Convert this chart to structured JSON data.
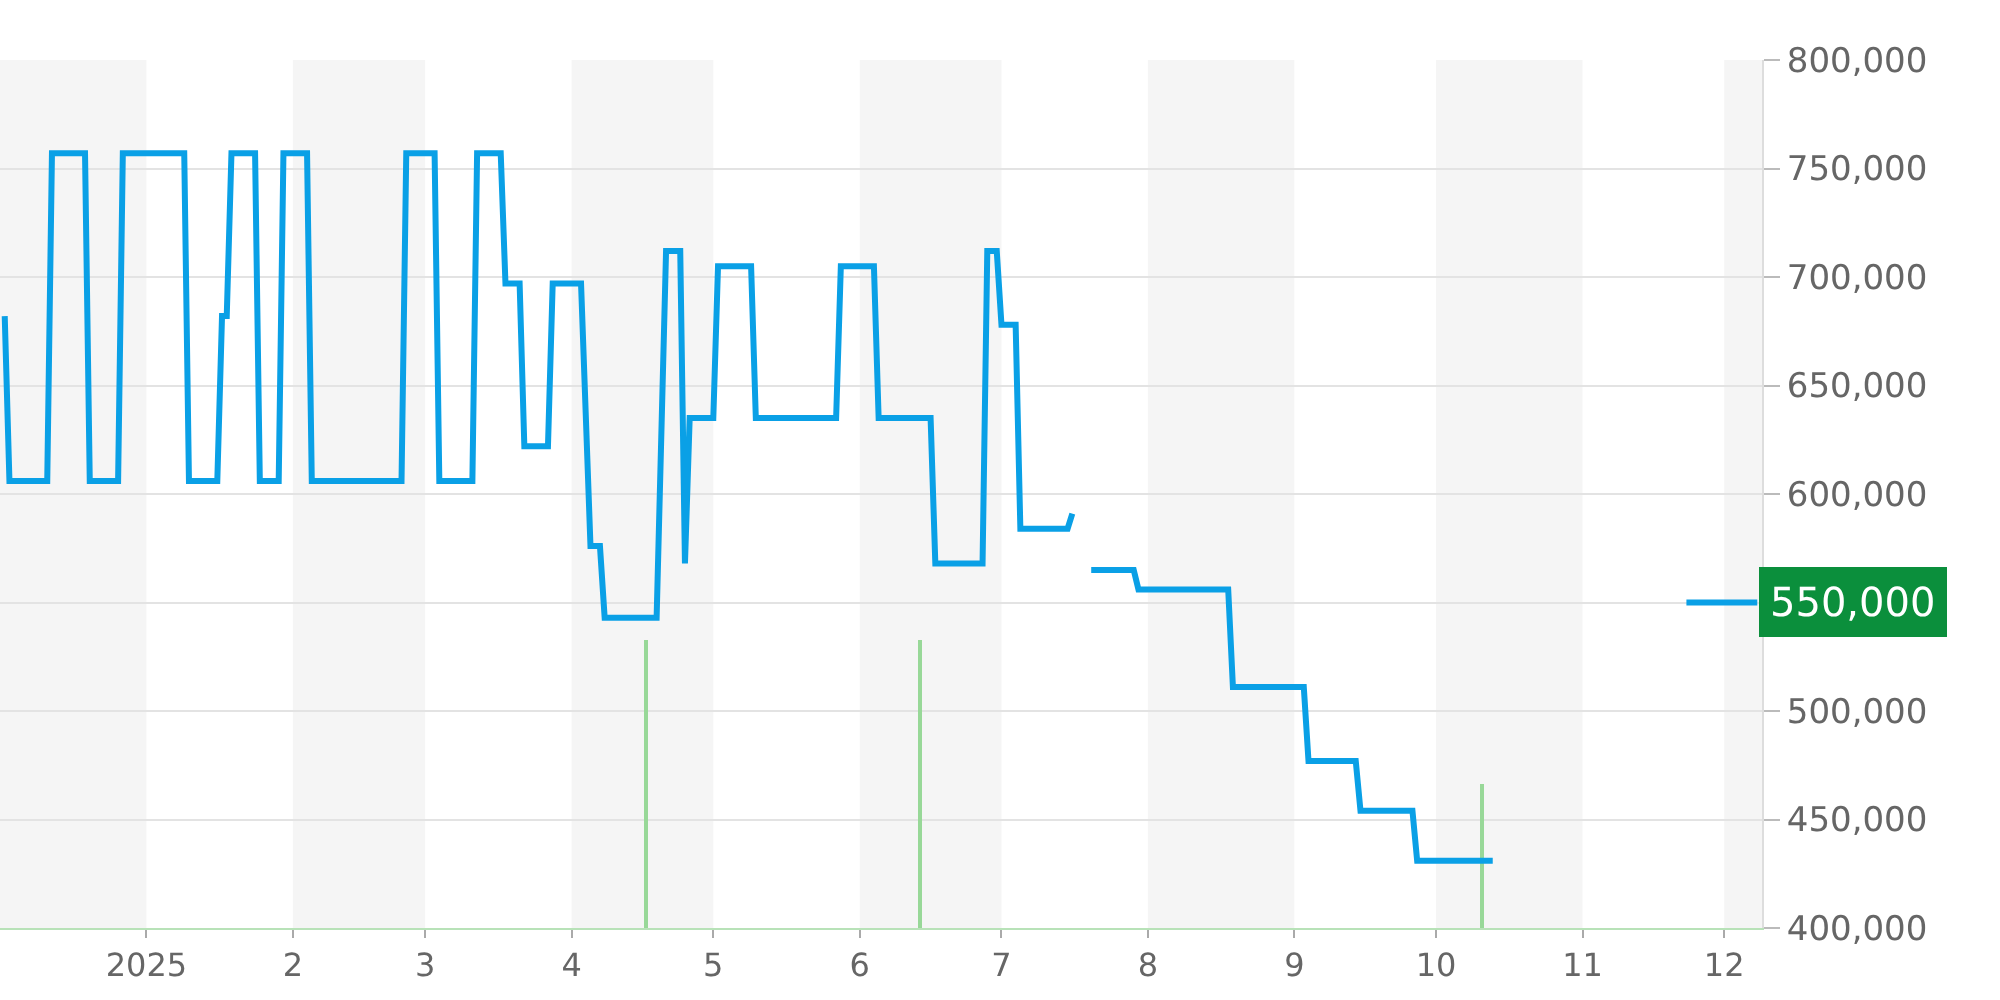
{
  "chart_data": {
    "type": "line",
    "series": [
      {
        "color": "#0aa0e6",
        "line_style": "solid",
        "x": [
          "2024-12-02",
          "2024-12-03",
          "2024-12-11",
          "2024-12-12",
          "2024-12-19",
          "2024-12-20",
          "2024-12-26",
          "2024-12-27",
          "2025-01-09",
          "2025-01-10",
          "2025-01-16",
          "2025-01-17",
          "2025-01-18",
          "2025-01-19",
          "2025-01-24",
          "2025-01-25",
          "2025-01-29",
          "2025-01-30",
          "2025-02-04",
          "2025-02-05",
          "2025-02-24",
          "2025-02-25",
          "2025-03-03",
          "2025-03-04",
          "2025-03-11",
          "2025-03-12",
          "2025-03-17",
          "2025-03-18",
          "2025-03-21",
          "2025-03-22",
          "2025-03-27",
          "2025-03-28",
          "2025-04-03",
          "2025-04-05",
          "2025-04-07",
          "2025-04-08",
          "2025-04-19",
          "2025-04-21",
          "2025-04-24",
          "2025-04-25",
          "2025-04-26",
          "2025-05-01",
          "2025-05-02",
          "2025-05-09",
          "2025-05-10",
          "2025-05-27",
          "2025-05-28",
          "2025-06-04",
          "2025-06-05",
          "2025-06-16",
          "2025-06-17",
          "2025-06-27",
          "2025-06-28",
          "2025-06-30",
          "2025-07-01",
          "2025-07-04",
          "2025-07-05",
          "2025-07-15",
          "2025-07-16",
          "2025-07-18",
          "2025-07-20",
          "2025-07-29",
          "2025-07-30",
          "2025-08-18",
          "2025-08-19",
          "2025-09-03",
          "2025-09-04",
          "2025-09-14",
          "2025-09-15",
          "2025-09-26",
          "2025-09-27",
          "2025-10-13",
          "2025-11-01",
          "2025-11-23",
          "2025-12-08"
        ],
        "values": [
          682000,
          606000,
          606000,
          757000,
          757000,
          606000,
          606000,
          757000,
          757000,
          606000,
          606000,
          682000,
          682000,
          757000,
          757000,
          606000,
          606000,
          757000,
          757000,
          606000,
          606000,
          757000,
          757000,
          606000,
          606000,
          757000,
          757000,
          697000,
          697000,
          622000,
          622000,
          697000,
          697000,
          576000,
          576000,
          543000,
          543000,
          712000,
          712000,
          568000,
          635000,
          635000,
          705000,
          705000,
          635000,
          635000,
          705000,
          705000,
          635000,
          635000,
          568000,
          568000,
          712000,
          712000,
          678000,
          678000,
          584000,
          584000,
          591000,
          null,
          565000,
          565000,
          556000,
          556000,
          511000,
          511000,
          477000,
          477000,
          454000,
          454000,
          431000,
          431000,
          null,
          550000,
          550000
        ]
      },
      {
        "type": "bar",
        "color": "#98d898",
        "x": [
          "2025-04-17",
          "2025-06-14",
          "2025-10-11"
        ],
        "base": [
          400000,
          400000,
          400000
        ],
        "values": [
          133000,
          133000,
          66000
        ]
      }
    ],
    "xlim": [
      "2024-12-01",
      "2025-12-09"
    ],
    "xticks": [
      {
        "value": "2025-01-01",
        "label": "2025"
      },
      {
        "value": "2025-02-01",
        "label": "2"
      },
      {
        "value": "2025-03-01",
        "label": "3"
      },
      {
        "value": "2025-04-01",
        "label": "4"
      },
      {
        "value": "2025-05-01",
        "label": "5"
      },
      {
        "value": "2025-06-01",
        "label": "6"
      },
      {
        "value": "2025-07-01",
        "label": "7"
      },
      {
        "value": "2025-08-01",
        "label": "8"
      },
      {
        "value": "2025-09-01",
        "label": "9"
      },
      {
        "value": "2025-10-01",
        "label": "10"
      },
      {
        "value": "2025-11-01",
        "label": "11"
      },
      {
        "value": "2025-12-01",
        "label": "12"
      }
    ],
    "ylim": [
      400000,
      800000
    ],
    "yticks": [
      {
        "value": 400000,
        "label": "400,000"
      },
      {
        "value": 450000,
        "label": "450,000"
      },
      {
        "value": 500000,
        "label": "500,000"
      },
      {
        "value": 550000,
        "label": null
      },
      {
        "value": 600000,
        "label": "600,000"
      },
      {
        "value": 650000,
        "label": "650,000"
      },
      {
        "value": 700000,
        "label": "700,000"
      },
      {
        "value": 750000,
        "label": "750,000"
      },
      {
        "value": 800000,
        "label": "800,000"
      }
    ],
    "grid": "y",
    "bands": [
      {
        "axis": "x",
        "from": "2024-12-01",
        "to": "2025-01-01",
        "color": "#f5f5f5"
      },
      {
        "axis": "x",
        "from": "2025-02-01",
        "to": "2025-03-01",
        "color": "#f5f5f5"
      },
      {
        "axis": "x",
        "from": "2025-04-01",
        "to": "2025-05-01",
        "color": "#f5f5f5"
      },
      {
        "axis": "x",
        "from": "2025-06-01",
        "to": "2025-07-01",
        "color": "#f5f5f5"
      },
      {
        "axis": "x",
        "from": "2025-08-01",
        "to": "2025-09-01",
        "color": "#f5f5f5"
      },
      {
        "axis": "x",
        "from": "2025-10-01",
        "to": "2025-11-01",
        "color": "#f5f5f5"
      },
      {
        "axis": "x",
        "from": "2025-12-01",
        "to": "2025-12-09",
        "color": "#f5f5f5"
      }
    ],
    "annotations": [
      {
        "text": "550,000",
        "x": "2025-12-08",
        "y": 550000
      }
    ]
  }
}
